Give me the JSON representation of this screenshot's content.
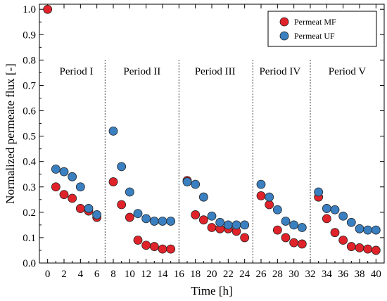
{
  "chart_data": {
    "type": "scatter",
    "title": "",
    "xlabel": "Time [h]",
    "ylabel": "Normalized permeate flux [-]",
    "xlim": [
      -1,
      41
    ],
    "ylim": [
      0.0,
      1.02
    ],
    "xticks": [
      0,
      2,
      4,
      6,
      8,
      10,
      12,
      14,
      16,
      18,
      20,
      22,
      24,
      26,
      28,
      30,
      32,
      34,
      36,
      38,
      40
    ],
    "yticks": [
      0.0,
      0.1,
      0.2,
      0.3,
      0.4,
      0.5,
      0.6,
      0.7,
      0.8,
      0.9,
      1.0
    ],
    "grid": false,
    "legend_position": "top-right",
    "periods": [
      {
        "label": "Period I",
        "center": 3.5
      },
      {
        "label": "Period II",
        "center": 11.5
      },
      {
        "label": "Period III",
        "center": 20.4
      },
      {
        "label": "Period IV",
        "center": 28.3
      },
      {
        "label": "Period V",
        "center": 36.5
      }
    ],
    "period_boundaries": [
      7,
      16,
      25,
      32
    ],
    "series": [
      {
        "name": "Permeat MF",
        "color": "#e0232a",
        "points": [
          [
            0,
            1.0
          ],
          [
            1,
            0.3
          ],
          [
            2,
            0.27
          ],
          [
            3,
            0.255
          ],
          [
            4,
            0.215
          ],
          [
            5,
            0.205
          ],
          [
            6,
            0.18
          ],
          [
            8,
            0.32
          ],
          [
            9,
            0.23
          ],
          [
            10,
            0.18
          ],
          [
            11,
            0.09
          ],
          [
            12,
            0.07
          ],
          [
            13,
            0.065
          ],
          [
            14,
            0.055
          ],
          [
            15,
            0.055
          ],
          [
            17,
            0.325
          ],
          [
            18,
            0.19
          ],
          [
            19,
            0.17
          ],
          [
            20,
            0.14
          ],
          [
            21,
            0.135
          ],
          [
            22,
            0.135
          ],
          [
            23,
            0.125
          ],
          [
            24,
            0.1
          ],
          [
            26,
            0.265
          ],
          [
            27,
            0.23
          ],
          [
            28,
            0.13
          ],
          [
            29,
            0.1
          ],
          [
            30,
            0.08
          ],
          [
            31,
            0.075
          ],
          [
            33,
            0.26
          ],
          [
            34,
            0.175
          ],
          [
            35,
            0.12
          ],
          [
            36,
            0.09
          ],
          [
            37,
            0.065
          ],
          [
            38,
            0.06
          ],
          [
            39,
            0.055
          ],
          [
            40,
            0.05
          ]
        ]
      },
      {
        "name": "Permeat UF",
        "color": "#3a7fc0",
        "points": [
          [
            1,
            0.37
          ],
          [
            2,
            0.36
          ],
          [
            3,
            0.34
          ],
          [
            4,
            0.3
          ],
          [
            5,
            0.215
          ],
          [
            6,
            0.19
          ],
          [
            8,
            0.52
          ],
          [
            9,
            0.38
          ],
          [
            10,
            0.28
          ],
          [
            11,
            0.195
          ],
          [
            12,
            0.175
          ],
          [
            13,
            0.165
          ],
          [
            14,
            0.165
          ],
          [
            15,
            0.165
          ],
          [
            17,
            0.32
          ],
          [
            18,
            0.31
          ],
          [
            19,
            0.26
          ],
          [
            20,
            0.185
          ],
          [
            21,
            0.16
          ],
          [
            22,
            0.15
          ],
          [
            23,
            0.15
          ],
          [
            24,
            0.15
          ],
          [
            26,
            0.31
          ],
          [
            27,
            0.26
          ],
          [
            28,
            0.21
          ],
          [
            29,
            0.165
          ],
          [
            30,
            0.15
          ],
          [
            31,
            0.14
          ],
          [
            33,
            0.28
          ],
          [
            34,
            0.215
          ],
          [
            35,
            0.21
          ],
          [
            36,
            0.185
          ],
          [
            37,
            0.16
          ],
          [
            38,
            0.135
          ],
          [
            39,
            0.13
          ],
          [
            40,
            0.13
          ]
        ]
      }
    ]
  }
}
